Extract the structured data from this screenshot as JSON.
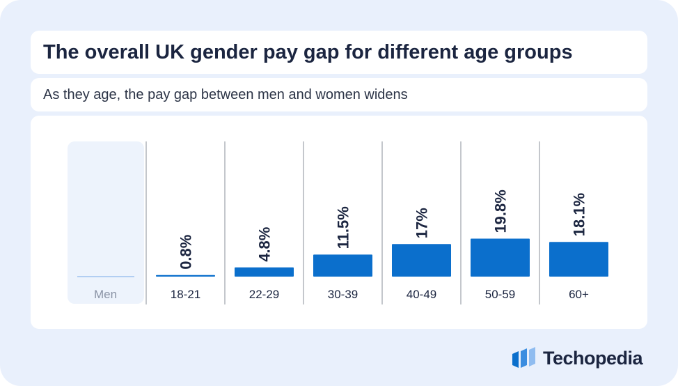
{
  "header": {
    "title": "The overall UK gender pay gap for different age groups",
    "subtitle": "As they age, the pay gap between men and women widens"
  },
  "brand": {
    "name": "Techopedia",
    "icon": "techopedia-logo-icon"
  },
  "colors": {
    "bar": "#0b6fcc",
    "background": "#e9f0fc",
    "text": "#1b2540",
    "baseline_men": "#9ec2ee"
  },
  "chart_data": {
    "type": "bar",
    "categories": [
      "Men",
      "18-21",
      "22-29",
      "30-39",
      "40-49",
      "50-59",
      "60+"
    ],
    "values": [
      0,
      0.8,
      4.8,
      11.5,
      17,
      19.8,
      18.1
    ],
    "labels": [
      "",
      "0.8%",
      "4.8%",
      "11.5%",
      "17%",
      "19.8%",
      "18.1%"
    ],
    "title": "The overall UK gender pay gap for different age groups",
    "subtitle": "As they age, the pay gap between men and women widens",
    "xlabel": "",
    "ylabel": "",
    "grid": false,
    "legend": "none"
  }
}
